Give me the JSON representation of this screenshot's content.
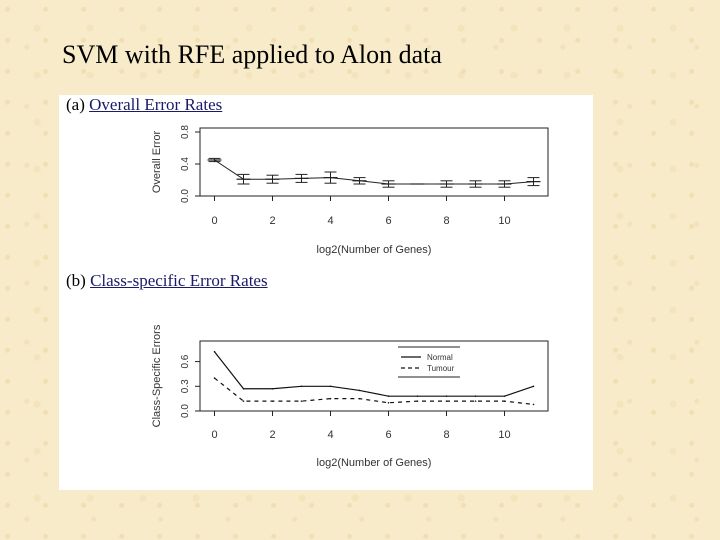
{
  "slide": {
    "title": "SVM with RFE applied to Alon data"
  },
  "chart_data": [
    {
      "type": "line",
      "caption_label": "(a)",
      "caption_text": "Overall Error Rates",
      "xlabel": "log2(Number of Genes)",
      "ylabel": "Overall Error",
      "xlim": [
        -0.5,
        11.5
      ],
      "ylim": [
        0,
        0.85
      ],
      "x_ticks": [
        0,
        2,
        4,
        6,
        8,
        10
      ],
      "y_ticks": [
        0.0,
        0.4,
        0.8
      ],
      "y_tick_labels": [
        "0.0",
        "0.4",
        "0.8"
      ],
      "grid": false,
      "series": [
        {
          "x": [
            0,
            1,
            2,
            3,
            4,
            5,
            6,
            7,
            8,
            9,
            10,
            11
          ],
          "y": [
            0.45,
            0.21,
            0.21,
            0.22,
            0.23,
            0.19,
            0.15,
            0.15,
            0.15,
            0.15,
            0.15,
            0.18
          ],
          "err": [
            0.02,
            0.06,
            0.05,
            0.05,
            0.07,
            0.04,
            0.04,
            0.0,
            0.04,
            0.04,
            0.04,
            0.05
          ],
          "style": "errorbar"
        }
      ]
    },
    {
      "type": "line",
      "caption_label": "(b)",
      "caption_text": "Class-specific Error Rates",
      "xlabel": "log2(Number of Genes)",
      "ylabel": "Class-Specific Errors",
      "xlim": [
        -0.5,
        11.5
      ],
      "ylim": [
        0,
        0.85
      ],
      "x_ticks": [
        0,
        2,
        4,
        6,
        8,
        10
      ],
      "y_ticks": [
        0.0,
        0.3,
        0.6
      ],
      "y_tick_labels": [
        "0.0",
        "0.3",
        "0.6"
      ],
      "grid": false,
      "legend": "top-right",
      "series": [
        {
          "name": "Normal",
          "dash": "solid",
          "x": [
            0,
            1,
            2,
            3,
            4,
            5,
            6,
            7,
            8,
            9,
            10,
            11
          ],
          "y": [
            0.72,
            0.27,
            0.27,
            0.3,
            0.3,
            0.25,
            0.18,
            0.18,
            0.18,
            0.18,
            0.18,
            0.3
          ]
        },
        {
          "name": "Tumour",
          "dash": "dashed",
          "x": [
            0,
            1,
            2,
            3,
            4,
            5,
            6,
            7,
            8,
            9,
            10,
            11
          ],
          "y": [
            0.4,
            0.12,
            0.12,
            0.12,
            0.15,
            0.15,
            0.1,
            0.12,
            0.12,
            0.12,
            0.12,
            0.08
          ]
        }
      ]
    }
  ]
}
